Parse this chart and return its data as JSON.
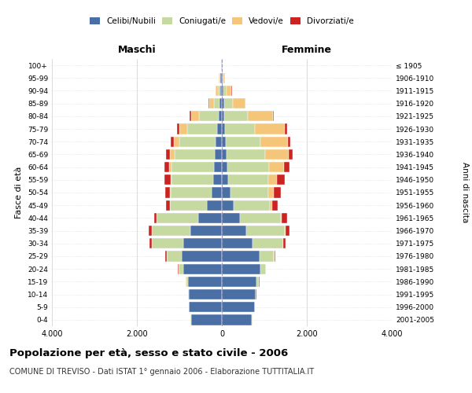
{
  "age_groups": [
    "0-4",
    "5-9",
    "10-14",
    "15-19",
    "20-24",
    "25-29",
    "30-34",
    "35-39",
    "40-44",
    "45-49",
    "50-54",
    "55-59",
    "60-64",
    "65-69",
    "70-74",
    "75-79",
    "80-84",
    "85-89",
    "90-94",
    "95-99",
    "100+"
  ],
  "birth_years": [
    "2001-2005",
    "1996-2000",
    "1991-1995",
    "1986-1990",
    "1981-1985",
    "1976-1980",
    "1971-1975",
    "1966-1970",
    "1961-1965",
    "1956-1960",
    "1951-1955",
    "1946-1950",
    "1941-1945",
    "1936-1940",
    "1931-1935",
    "1926-1930",
    "1921-1925",
    "1916-1920",
    "1911-1915",
    "1906-1910",
    "≤ 1905"
  ],
  "male_celibi": [
    730,
    770,
    780,
    800,
    900,
    950,
    900,
    750,
    550,
    350,
    250,
    200,
    180,
    170,
    150,
    120,
    80,
    50,
    30,
    30,
    10
  ],
  "male_coniugati": [
    5,
    5,
    10,
    40,
    120,
    350,
    750,
    900,
    980,
    870,
    950,
    980,
    1000,
    950,
    850,
    700,
    450,
    130,
    60,
    20,
    5
  ],
  "male_vedovi": [
    5,
    5,
    5,
    5,
    5,
    5,
    5,
    5,
    5,
    10,
    20,
    30,
    60,
    100,
    130,
    180,
    200,
    120,
    50,
    15,
    3
  ],
  "male_divorziati": [
    5,
    5,
    5,
    5,
    10,
    30,
    50,
    60,
    60,
    80,
    120,
    150,
    120,
    100,
    80,
    50,
    20,
    10,
    5,
    5,
    2
  ],
  "female_celibi": [
    710,
    770,
    790,
    820,
    900,
    880,
    720,
    580,
    430,
    280,
    200,
    150,
    130,
    120,
    100,
    80,
    60,
    50,
    30,
    20,
    5
  ],
  "female_coniugati": [
    5,
    5,
    10,
    50,
    130,
    350,
    720,
    900,
    950,
    850,
    900,
    950,
    980,
    900,
    800,
    700,
    550,
    200,
    80,
    20,
    5
  ],
  "female_vedovi": [
    5,
    5,
    5,
    5,
    5,
    8,
    10,
    20,
    30,
    60,
    120,
    200,
    350,
    550,
    650,
    700,
    600,
    300,
    120,
    30,
    5
  ],
  "female_divorziati": [
    5,
    5,
    5,
    5,
    10,
    20,
    50,
    100,
    120,
    120,
    160,
    180,
    130,
    90,
    70,
    50,
    20,
    10,
    5,
    5,
    2
  ],
  "color_celibi": "#4a6fa5",
  "color_coniugati": "#c5d9a0",
  "color_vedovi": "#f5c57a",
  "color_divorziati": "#cc2222",
  "legend_celibi": "Celibi/Nubili",
  "legend_coniugati": "Coniugati/e",
  "legend_vedovi": "Vedovi/e",
  "legend_divorziati": "Divorziati/e",
  "title": "Popolazione per età, sesso e stato civile - 2006",
  "subtitle": "COMUNE DI TREVISO - Dati ISTAT 1° gennaio 2006 - Elaborazione TUTTITALIA.IT",
  "xlabel_left": "Maschi",
  "xlabel_right": "Femmine",
  "ylabel_left": "Fasce di età",
  "ylabel_right": "Anni di nascita",
  "xlim": 4000,
  "bg_color": "#ffffff",
  "grid_color": "#cccccc"
}
